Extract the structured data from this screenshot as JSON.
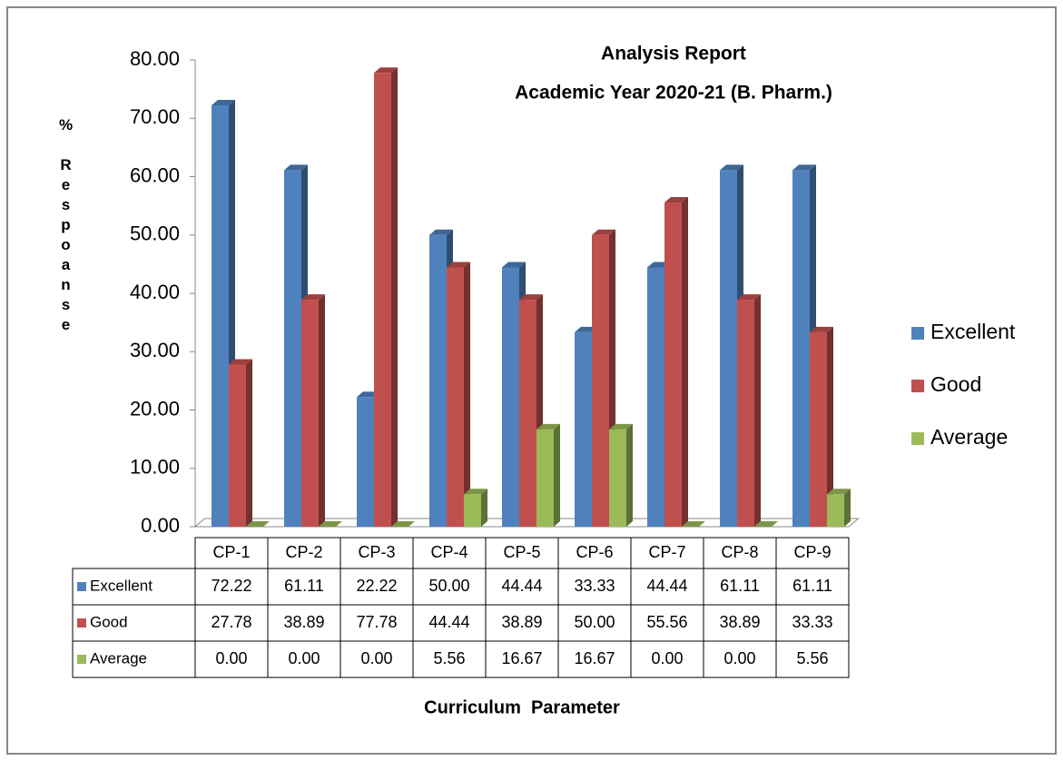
{
  "chart_data": {
    "type": "bar3d",
    "title": "Analysis Report",
    "subtitle": "Academic Year 2020-21 (B. Pharm.)",
    "y_label": "% Respoanse",
    "x_label": "Curriculum  Parameter",
    "categories": [
      "CP-1",
      "CP-2",
      "CP-3",
      "CP-4",
      "CP-5",
      "CP-6",
      "CP-7",
      "CP-8",
      "CP-9"
    ],
    "series": [
      {
        "name": "Excellent",
        "color": "#4f81bd",
        "values": [
          72.22,
          61.11,
          22.22,
          50,
          44.44,
          33.33,
          44.44,
          61.11,
          61.11
        ],
        "value_labels": [
          "72.22",
          "61.11",
          "22.22",
          "50.00",
          "44.44",
          "33.33",
          "44.44",
          "61.11",
          "61.11"
        ]
      },
      {
        "name": "Good",
        "color": "#c0504d",
        "values": [
          27.78,
          38.89,
          77.78,
          44.44,
          38.89,
          50,
          55.56,
          38.89,
          33.33
        ],
        "value_labels": [
          "27.78",
          "38.89",
          "77.78",
          "44.44",
          "38.89",
          "50.00",
          "55.56",
          "38.89",
          "33.33"
        ]
      },
      {
        "name": "Average",
        "color": "#9bbb59",
        "values": [
          0,
          0,
          0,
          5.56,
          16.67,
          16.67,
          0,
          0,
          5.56
        ],
        "value_labels": [
          "0.00",
          "0.00",
          "0.00",
          "5.56",
          "16.67",
          "16.67",
          "0.00",
          "0.00",
          "5.56"
        ]
      }
    ],
    "ylim": [
      0,
      80
    ],
    "yticks": [
      {
        "value": 0,
        "label": "0.00"
      },
      {
        "value": 10,
        "label": "10.00"
      },
      {
        "value": 20,
        "label": "20.00"
      },
      {
        "value": 30,
        "label": "30.00"
      },
      {
        "value": 40,
        "label": "40.00"
      },
      {
        "value": 50,
        "label": "50.00"
      },
      {
        "value": 60,
        "label": "60.00"
      },
      {
        "value": 70,
        "label": "70.00"
      },
      {
        "value": 80,
        "label": "80.00"
      }
    ],
    "legend": "right",
    "grid": false,
    "data_table": true
  }
}
